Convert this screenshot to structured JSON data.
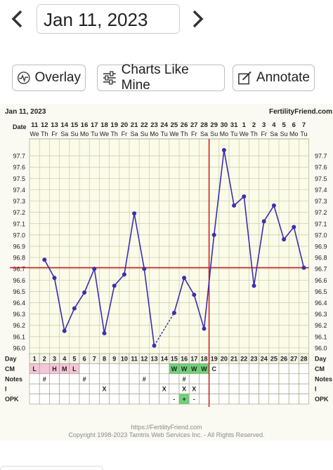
{
  "nav": {
    "date": "Jan 11, 2023"
  },
  "toolbar": {
    "overlay": "Overlay",
    "charts_like_mine": "Charts Like Mine",
    "annotate": "Annotate"
  },
  "chart_data": {
    "type": "line",
    "title": "Jan 11, 2023",
    "site": "FertilityFriend.com",
    "date_label": "Date",
    "dates": [
      "11",
      "12",
      "13",
      "14",
      "15",
      "16",
      "17",
      "18",
      "19",
      "20",
      "21",
      "22",
      "23",
      "24",
      "25",
      "26",
      "27",
      "28",
      "29",
      "30",
      "31",
      "1",
      "2",
      "3",
      "4",
      "5",
      "6",
      "7"
    ],
    "weekdays": [
      "We",
      "Th",
      "Fr",
      "Sa",
      "Su",
      "Mo",
      "Tu",
      "We",
      "Th",
      "Fr",
      "Sa",
      "Su",
      "Mo",
      "Tu",
      "We",
      "Th",
      "Fr",
      "Sa",
      "Su",
      "Mo",
      "Tu",
      "We",
      "Th",
      "Fr",
      "Sa",
      "Su",
      "Mo",
      "Tu"
    ],
    "cycle_days": [
      "1",
      "2",
      "3",
      "4",
      "5",
      "6",
      "7",
      "8",
      "9",
      "10",
      "11",
      "12",
      "13",
      "14",
      "15",
      "16",
      "17",
      "18",
      "19",
      "20",
      "21",
      "22",
      "23",
      "24",
      "25",
      "26",
      "27",
      "28"
    ],
    "y_ticks": [
      "96.0",
      "96.1",
      "96.2",
      "96.3",
      "96.4",
      "96.5",
      "96.6",
      "96.7",
      "96.8",
      "96.9",
      "97.0",
      "97.1",
      "97.2",
      "97.3",
      "97.4",
      "97.5",
      "97.6",
      "97.7"
    ],
    "ylim": [
      95.95,
      97.8
    ],
    "temps": [
      null,
      96.78,
      96.62,
      96.15,
      96.35,
      96.49,
      96.7,
      96.13,
      96.55,
      96.65,
      97.19,
      96.7,
      96.02,
      null,
      96.31,
      96.62,
      96.47,
      96.17,
      97.0,
      97.75,
      97.26,
      97.34,
      96.55,
      97.12,
      97.26,
      96.96,
      97.07,
      96.71
    ],
    "dashed_segments": [
      [
        12,
        14
      ]
    ],
    "coverline": 96.71,
    "ovulation_day": 18,
    "rows": {
      "day": "Day",
      "cm": "CM",
      "notes": "Notes",
      "i": "I",
      "opk": "OPK"
    },
    "cm_values": [
      "L",
      "",
      "H",
      "M",
      "L",
      "",
      "",
      "",
      "",
      "",
      "",
      "",
      "",
      "",
      "W",
      "W",
      "W",
      "W",
      "C",
      "",
      "",
      "",
      "",
      "",
      "",
      "",
      "",
      ""
    ],
    "notes_values": [
      "",
      "#",
      "",
      "",
      "",
      "#",
      "",
      "",
      "",
      "",
      "",
      "#",
      "",
      "",
      "",
      "#",
      "",
      "",
      "",
      "",
      "",
      "",
      "",
      "",
      "",
      "",
      "",
      ""
    ],
    "i_values": [
      "",
      "",
      "",
      "",
      "",
      "",
      "",
      "X",
      "",
      "",
      "",
      "",
      "",
      "X",
      "",
      "X",
      "X",
      "",
      "",
      "",
      "",
      "",
      "",
      "",
      "",
      "",
      "",
      ""
    ],
    "opk_values": [
      "",
      "",
      "",
      "",
      "",
      "",
      "",
      "",
      "",
      "",
      "",
      "",
      "",
      "",
      "-",
      "+",
      "-",
      "",
      "",
      "",
      "",
      "",
      "",
      "",
      "",
      "",
      "",
      ""
    ],
    "colors": {
      "line": "#3a2fb0",
      "coverline": "#cc2222",
      "ovulation": "#cc2222",
      "grid": "#c9c9a6",
      "cm_pink": "#f3c6d8",
      "cm_green": "#6fd17a"
    }
  },
  "footer": {
    "url": "https://FertilityFriend.com",
    "copyright": "Copyright 1998-2023 Tamtris Web Services Inc. - All Rights Reserved."
  }
}
